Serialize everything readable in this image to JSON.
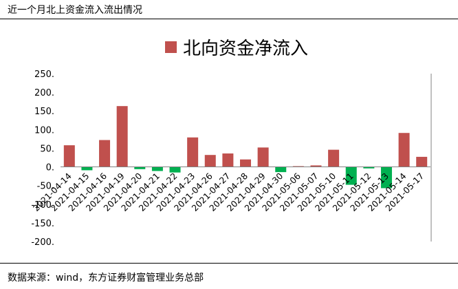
{
  "page": {
    "title": "近一个月北上资金流入流出情况",
    "source": "数据来源：wind，东方证券财富管理业务总部"
  },
  "chart_data": {
    "type": "bar",
    "categories": [
      "2021-04-14",
      "2021-04-15",
      "2021-04-16",
      "2021-04-19",
      "2021-04-20",
      "2021-04-21",
      "2021-04-22",
      "2021-04-23",
      "2021-04-26",
      "2021-04-27",
      "2021-04-28",
      "2021-04-29",
      "2021-04-30",
      "2021-05-06",
      "2021-05-07",
      "2021-05-10",
      "2021-05-11",
      "2021-05-12",
      "2021-05-13",
      "2021-05-14",
      "2021-05-17"
    ],
    "series": [
      {
        "name": "北向资金净流入",
        "values": [
          58,
          -9,
          72,
          163,
          -6,
          -11,
          -15,
          79,
          32,
          36,
          20,
          52,
          -14,
          2,
          4,
          46,
          -48,
          -4,
          -57,
          91,
          27
        ]
      }
    ],
    "ylim": [
      -200,
      250
    ],
    "yticks": [
      -200,
      -150,
      -100,
      -50,
      0,
      50,
      100,
      150,
      200,
      250
    ],
    "ytick_labels": [
      "-200.",
      "-150.",
      "-100.",
      "-50.",
      "0.",
      "50.",
      "100.",
      "150.",
      "200.",
      "250."
    ],
    "colors": {
      "positive": "#c0504d",
      "negative": "#00b050"
    },
    "legend_position": "top-center",
    "grid": false
  }
}
